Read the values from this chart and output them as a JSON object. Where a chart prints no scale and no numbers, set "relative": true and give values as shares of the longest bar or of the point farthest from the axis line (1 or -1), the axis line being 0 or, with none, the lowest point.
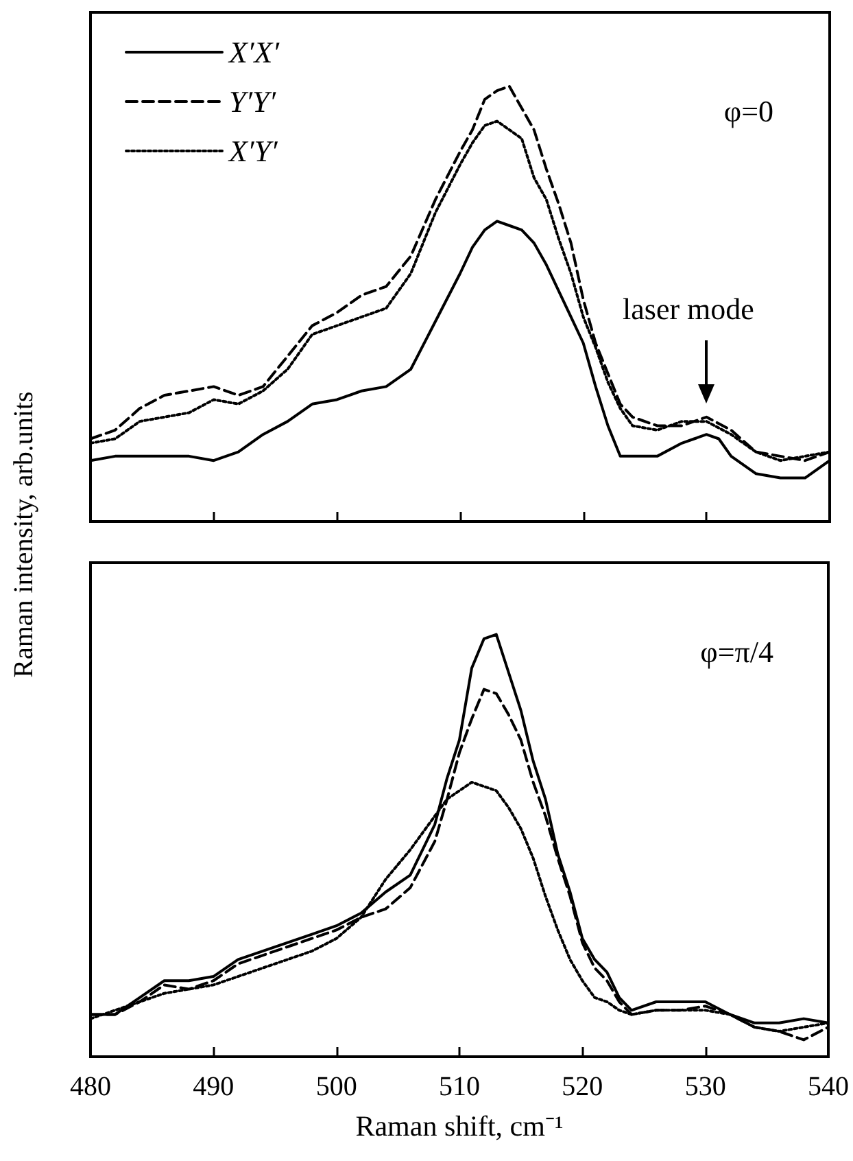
{
  "chart_data": [
    {
      "type": "line",
      "relative": true,
      "ylabel": "Raman intensity, arb.units",
      "xlim": [
        480,
        540
      ],
      "xticks": [
        480,
        490,
        500,
        510,
        520,
        530,
        540
      ],
      "tick_labels": false,
      "legend": "top left",
      "marker": "none",
      "annotations": [
        "φ=0",
        "laser mode"
      ],
      "x": [
        480,
        482,
        484,
        486,
        488,
        490,
        492,
        494,
        496,
        498,
        500,
        502,
        504,
        506,
        508,
        510,
        511,
        512,
        513,
        514,
        515,
        516,
        517,
        518,
        519,
        520,
        521,
        522,
        523,
        524,
        526,
        528,
        530,
        532,
        534,
        536,
        538,
        540
      ],
      "series": [
        {
          "name": "X′X′",
          "color": "#000000",
          "line_style": "solid",
          "x": [
            480,
            482,
            484,
            486,
            488,
            490,
            492,
            494,
            496,
            498,
            500,
            502,
            504,
            506,
            508,
            510,
            511,
            512,
            513,
            514,
            515,
            516,
            517,
            518,
            519,
            520,
            521,
            522,
            523,
            524,
            526,
            528,
            529,
            530,
            531,
            532,
            534,
            536,
            538,
            540
          ],
          "values": [
            0.14,
            0.15,
            0.15,
            0.15,
            0.15,
            0.14,
            0.16,
            0.2,
            0.23,
            0.27,
            0.28,
            0.3,
            0.31,
            0.35,
            0.46,
            0.57,
            0.63,
            0.67,
            0.69,
            0.68,
            0.67,
            0.64,
            0.59,
            0.53,
            0.47,
            0.41,
            0.31,
            0.22,
            0.15,
            0.15,
            0.15,
            0.18,
            0.19,
            0.2,
            0.19,
            0.15,
            0.11,
            0.1,
            0.1,
            0.14
          ]
        },
        {
          "name": "Y′Y′",
          "color": "#000000",
          "line_style": "dashed",
          "values": [
            0.19,
            0.21,
            0.26,
            0.29,
            0.3,
            0.31,
            0.29,
            0.31,
            0.38,
            0.45,
            0.48,
            0.52,
            0.54,
            0.61,
            0.74,
            0.85,
            0.9,
            0.97,
            0.99,
            1,
            0.95,
            0.9,
            0.81,
            0.73,
            0.64,
            0.51,
            0.41,
            0.34,
            0.27,
            0.24,
            0.22,
            0.22,
            0.24,
            0.21,
            0.16,
            0.15,
            0.14,
            0.16
          ]
        },
        {
          "name": "X′Y′",
          "color": "#000000",
          "line_style": "dotted",
          "values": [
            0.18,
            0.19,
            0.23,
            0.24,
            0.25,
            0.28,
            0.27,
            0.3,
            0.35,
            0.43,
            0.45,
            0.47,
            0.49,
            0.57,
            0.71,
            0.82,
            0.87,
            0.91,
            0.92,
            0.9,
            0.88,
            0.79,
            0.74,
            0.65,
            0.57,
            0.47,
            0.4,
            0.32,
            0.26,
            0.22,
            0.21,
            0.23,
            0.23,
            0.2,
            0.16,
            0.14,
            0.15,
            0.16
          ]
        }
      ]
    },
    {
      "type": "line",
      "relative": true,
      "xlabel": "Raman shift, cm⁻¹",
      "xlim": [
        480,
        540
      ],
      "xticks": [
        480,
        490,
        500,
        510,
        520,
        530,
        540
      ],
      "tick_labels": "x",
      "marker": "none",
      "annotations": [
        "φ=π/4"
      ],
      "x": [
        480,
        482,
        484,
        486,
        488,
        490,
        492,
        494,
        496,
        498,
        500,
        502,
        504,
        506,
        508,
        509,
        510,
        511,
        512,
        513,
        514,
        515,
        516,
        517,
        518,
        519,
        520,
        521,
        522,
        523,
        524,
        526,
        528,
        530,
        532,
        534,
        536,
        538,
        540
      ],
      "series": [
        {
          "color": "#000000",
          "line_style": "solid",
          "values": [
            0.1,
            0.1,
            0.14,
            0.18,
            0.18,
            0.19,
            0.23,
            0.25,
            0.27,
            0.29,
            0.31,
            0.34,
            0.39,
            0.43,
            0.55,
            0.66,
            0.75,
            0.92,
            0.99,
            1,
            0.91,
            0.82,
            0.7,
            0.61,
            0.48,
            0.39,
            0.28,
            0.23,
            0.2,
            0.14,
            0.11,
            0.13,
            0.13,
            0.13,
            0.1,
            0.08,
            0.08,
            0.09,
            0.08
          ]
        },
        {
          "color": "#000000",
          "line_style": "dashed",
          "values": [
            0.1,
            0.1,
            0.13,
            0.17,
            0.16,
            0.18,
            0.22,
            0.24,
            0.26,
            0.28,
            0.3,
            0.33,
            0.35,
            0.4,
            0.51,
            0.61,
            0.72,
            0.8,
            0.87,
            0.86,
            0.81,
            0.75,
            0.65,
            0.57,
            0.47,
            0.38,
            0.27,
            0.21,
            0.18,
            0.13,
            0.1,
            0.11,
            0.11,
            0.12,
            0.1,
            0.07,
            0.06,
            0.04,
            0.07
          ]
        },
        {
          "color": "#000000",
          "line_style": "dotted",
          "values": [
            0.09,
            0.11,
            0.13,
            0.15,
            0.16,
            0.17,
            0.19,
            0.21,
            0.23,
            0.25,
            0.28,
            0.33,
            0.42,
            0.49,
            0.57,
            0.61,
            0.63,
            0.65,
            0.64,
            0.63,
            0.59,
            0.54,
            0.47,
            0.38,
            0.3,
            0.23,
            0.18,
            0.14,
            0.13,
            0.11,
            0.1,
            0.11,
            0.11,
            0.11,
            0.1,
            0.07,
            0.06,
            0.07,
            0.08
          ]
        }
      ]
    }
  ]
}
